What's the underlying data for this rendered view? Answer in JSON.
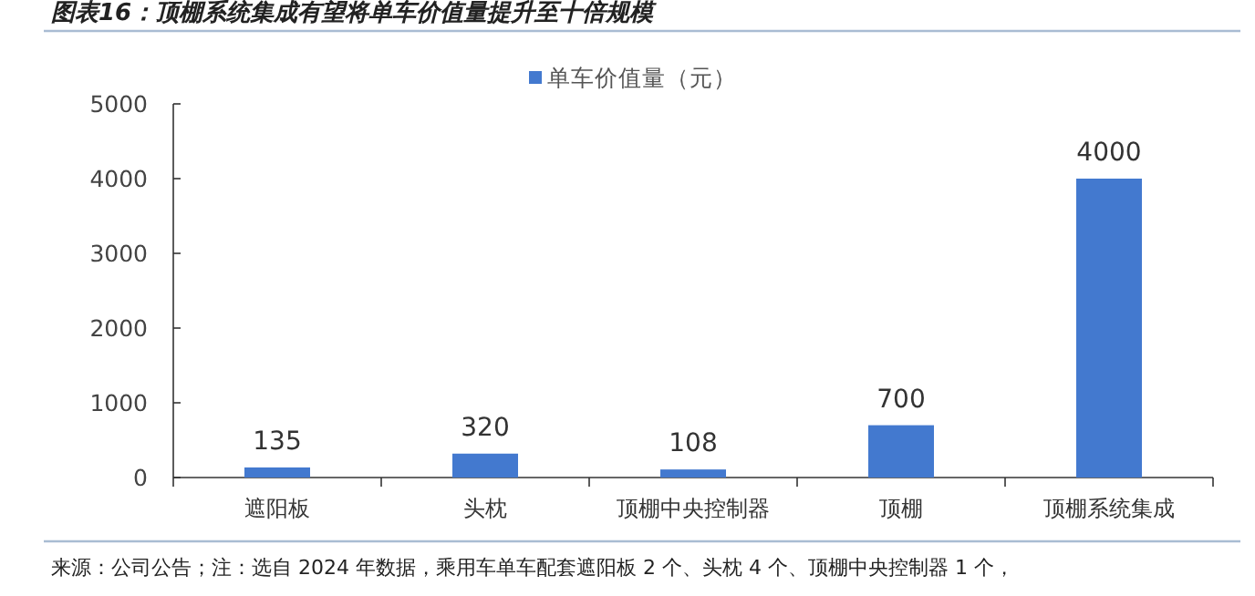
{
  "chart_data": {
    "type": "bar",
    "title": "图表16：顶棚系统集成有望将单车价值量提升至十倍规模",
    "categories": [
      "遮阳板",
      "头枕",
      "顶棚中央控制器",
      "顶棚",
      "顶棚系统集成"
    ],
    "series": [
      {
        "name": "单车价值量（元）",
        "color": "#4379cf",
        "values": [
          135,
          320,
          108,
          700,
          4000
        ]
      }
    ],
    "ylim": [
      0,
      5000
    ],
    "yticks": [
      0,
      1000,
      2000,
      3000,
      4000,
      5000
    ],
    "data_labels": true,
    "legend": "top",
    "grid": false,
    "annotations": [
      "来源：公司公告；注：选自 2024 年数据，乘用车单车配套遮阳板 2 个、头枕 4 个、顶棚中央控制器 1 个，"
    ]
  }
}
